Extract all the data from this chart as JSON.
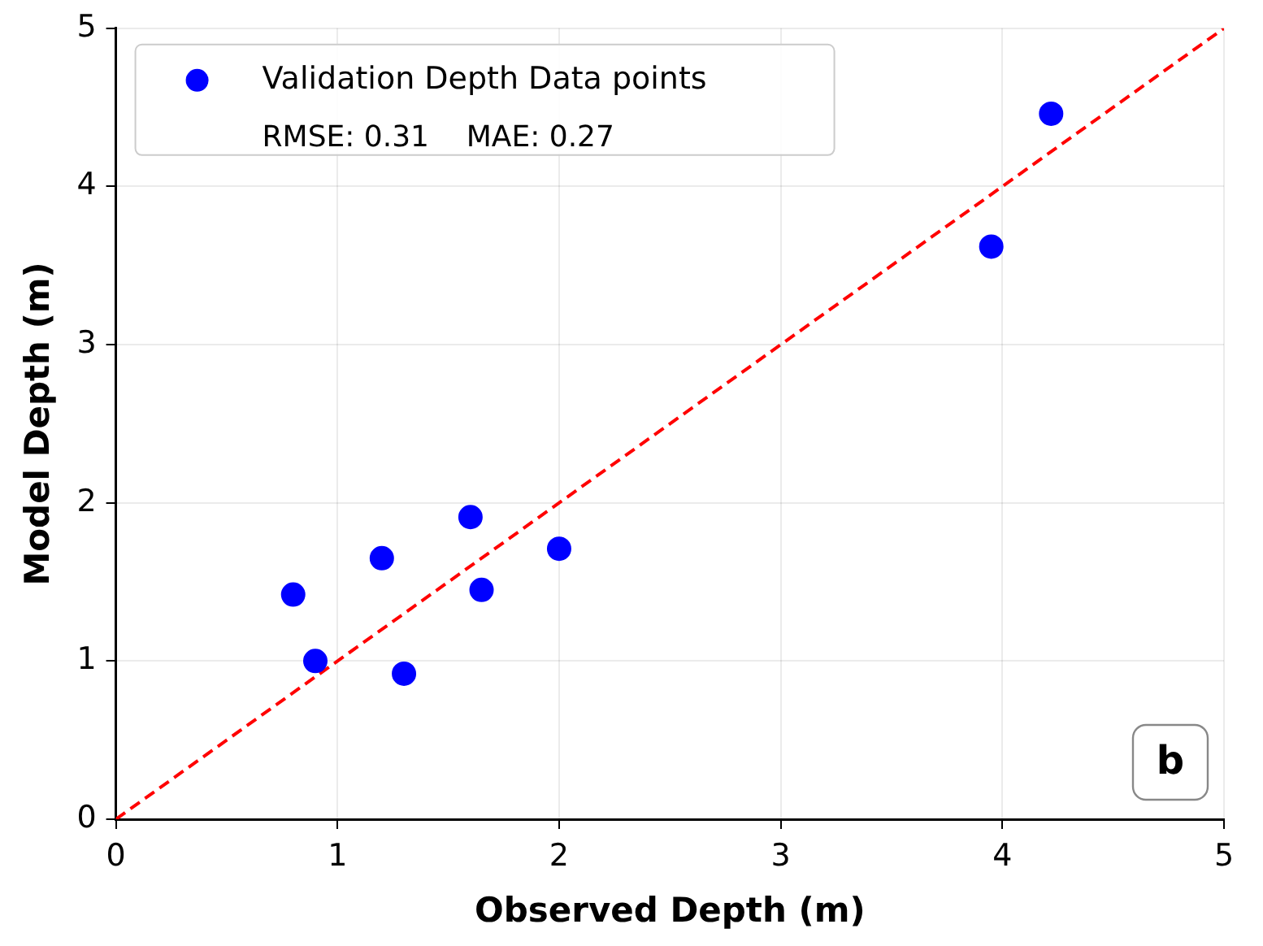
{
  "chart_data": {
    "type": "scatter",
    "xlabel": "Observed Depth (m)",
    "ylabel": "Model Depth (m)",
    "xlim": [
      0,
      5
    ],
    "ylim": [
      0,
      5
    ],
    "xticks": [
      0,
      1,
      2,
      3,
      4,
      5
    ],
    "yticks": [
      0,
      1,
      2,
      3,
      4,
      5
    ],
    "grid": true,
    "legend": "top left",
    "annotations": [
      "RMSE: 0.31    MAE: 0.27",
      "b"
    ],
    "series": [
      {
        "type": "scatter",
        "name": "Validation Depth Data points",
        "color": "#0000ff",
        "marker": "circle",
        "x": [
          0.8,
          0.9,
          1.2,
          1.3,
          1.6,
          1.65,
          2.0,
          3.95,
          4.22
        ],
        "values": [
          1.42,
          1.0,
          1.65,
          0.92,
          1.91,
          1.45,
          1.71,
          3.62,
          4.46
        ]
      },
      {
        "type": "line",
        "color": "#ff0000",
        "line_style": "dashed",
        "marker": "none",
        "x": [
          0,
          5
        ],
        "values": [
          0,
          5
        ]
      }
    ]
  }
}
